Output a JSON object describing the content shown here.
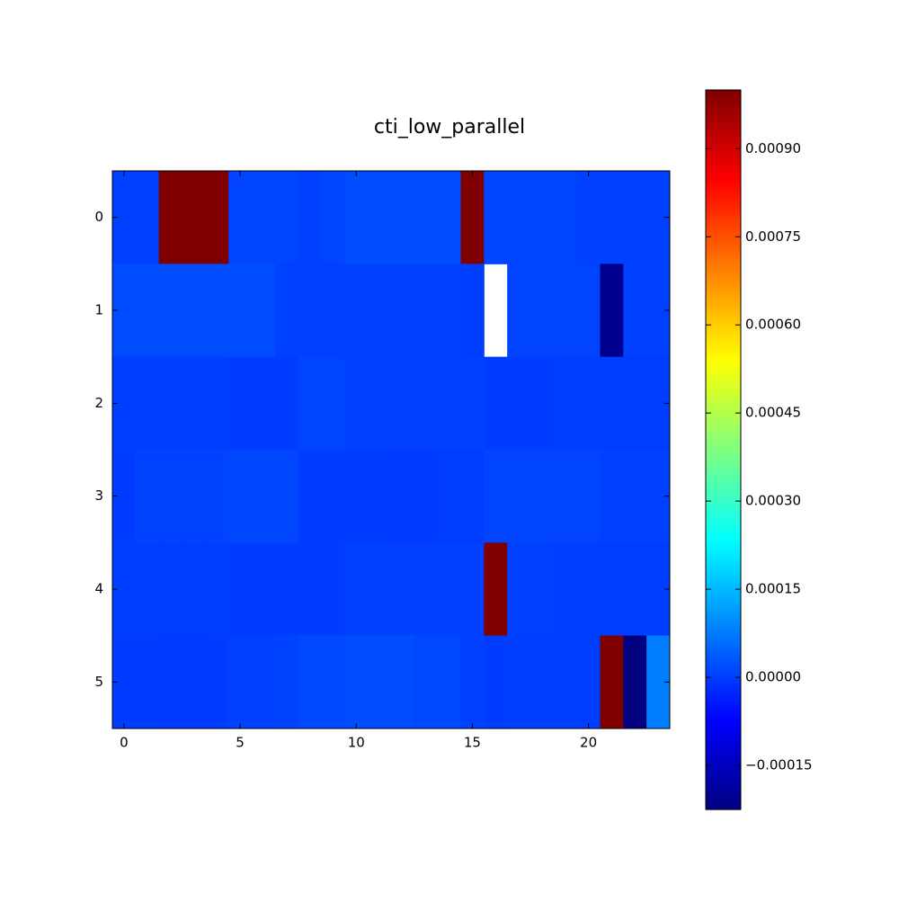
{
  "chart_data": {
    "type": "heatmap",
    "title": "cti_low_parallel",
    "colormap": "jet",
    "xlim": [
      -0.5,
      23.5
    ],
    "xticks": [
      0,
      5,
      10,
      15,
      20
    ],
    "ylim": [
      5.5,
      -0.5
    ],
    "yticks": [
      0,
      1,
      2,
      3,
      4,
      5
    ],
    "clim": [
      -0.000225,
      0.001
    ],
    "cticks": [
      {
        "value": -0.00015,
        "label": "−0.00015"
      },
      {
        "value": 0,
        "label": "0.00000"
      },
      {
        "value": 0.00015,
        "label": "0.00015"
      },
      {
        "value": 0.0003,
        "label": "0.00030"
      },
      {
        "value": 0.00045,
        "label": "0.00045"
      },
      {
        "value": 0.0006,
        "label": "0.00060"
      },
      {
        "value": 0.00075,
        "label": "0.00075"
      },
      {
        "value": 0.0009,
        "label": "0.00090"
      }
    ],
    "values": [
      [
        5e-06,
        5e-06,
        0.0012,
        0.0012,
        0.0012,
        1e-05,
        1e-05,
        1e-05,
        5e-06,
        1e-05,
        2e-05,
        2e-05,
        2e-05,
        2e-05,
        2e-05,
        0.0012,
        1e-05,
        1e-05,
        1e-05,
        1e-05,
        5e-06,
        5e-06,
        5e-06,
        5e-06
      ],
      [
        2e-05,
        2e-05,
        2e-05,
        2e-05,
        2e-05,
        2e-05,
        2e-05,
        5e-06,
        5e-06,
        5e-06,
        5e-06,
        5e-06,
        5e-06,
        5e-06,
        5e-06,
        3e-06,
        null,
        1e-05,
        1e-05,
        1e-05,
        1e-05,
        -0.000205,
        5e-06,
        5e-06
      ],
      [
        3e-06,
        3e-06,
        3e-06,
        3e-06,
        3e-06,
        0.0,
        0.0,
        0.0,
        1e-05,
        1e-05,
        5e-06,
        5e-06,
        5e-06,
        5e-06,
        5e-06,
        5e-06,
        0.0,
        0.0,
        0.0,
        3e-06,
        3e-06,
        3e-06,
        3e-06,
        3e-06
      ],
      [
        0.0,
        8e-06,
        8e-06,
        8e-06,
        8e-06,
        1.2e-05,
        1.2e-05,
        1.2e-05,
        0.0,
        0.0,
        0.0,
        0.0,
        -3e-06,
        -3e-06,
        3e-06,
        3e-06,
        1e-05,
        1e-05,
        1e-05,
        1e-05,
        1e-05,
        5e-06,
        5e-06,
        5e-06
      ],
      [
        3e-06,
        3e-06,
        3e-06,
        3e-06,
        3e-06,
        0.0,
        0.0,
        0.0,
        0.0,
        0.0,
        5e-06,
        5e-06,
        5e-06,
        5e-06,
        5e-06,
        5e-06,
        0.0012,
        5e-06,
        5e-06,
        3e-06,
        3e-06,
        3e-06,
        3e-06,
        3e-06
      ],
      [
        0.0,
        0.0,
        -3e-06,
        -3e-06,
        0.0,
        5e-06,
        5e-06,
        8e-06,
        1.5e-05,
        1.5e-05,
        2e-05,
        2e-05,
        2e-05,
        1.5e-05,
        1.5e-05,
        5e-06,
        0.0,
        3e-06,
        3e-06,
        3e-06,
        3e-06,
        0.0012,
        -0.0003,
        8e-05
      ]
    ]
  }
}
